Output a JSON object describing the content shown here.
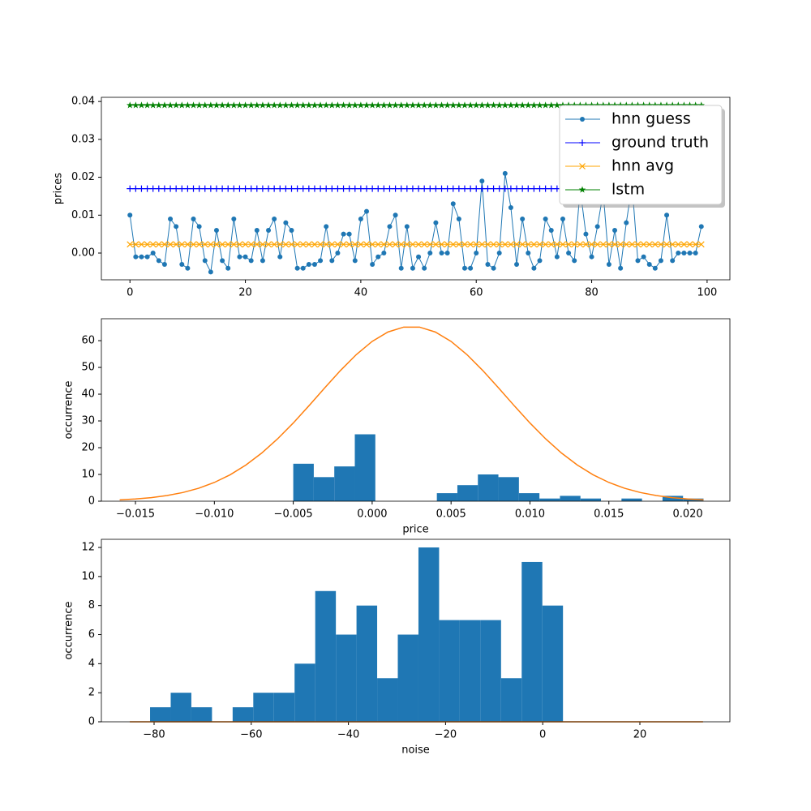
{
  "chart_data": [
    {
      "type": "line",
      "ylabel": "prices",
      "x": [
        0,
        1,
        2,
        3,
        4,
        5,
        6,
        7,
        8,
        9,
        10,
        11,
        12,
        13,
        14,
        15,
        16,
        17,
        18,
        19,
        20,
        21,
        22,
        23,
        24,
        25,
        26,
        27,
        28,
        29,
        30,
        31,
        32,
        33,
        34,
        35,
        36,
        37,
        38,
        39,
        40,
        41,
        42,
        43,
        44,
        45,
        46,
        47,
        48,
        49,
        50,
        51,
        52,
        53,
        54,
        55,
        56,
        57,
        58,
        59,
        60,
        61,
        62,
        63,
        64,
        65,
        66,
        67,
        68,
        69,
        70,
        71,
        72,
        73,
        74,
        75,
        76,
        77,
        78,
        79,
        80,
        81,
        82,
        83,
        84,
        85,
        86,
        87,
        88,
        89,
        90,
        91,
        92,
        93,
        94,
        95,
        96,
        97,
        98,
        99
      ],
      "series": [
        {
          "name": "hnn guess",
          "color": "#1f77b4",
          "marker": "dot",
          "values": [
            0.01,
            -0.001,
            -0.001,
            -0.001,
            0.0,
            -0.002,
            -0.003,
            0.009,
            0.007,
            -0.003,
            -0.004,
            0.009,
            0.007,
            -0.002,
            -0.005,
            0.006,
            -0.002,
            -0.004,
            0.009,
            -0.001,
            -0.001,
            -0.002,
            0.006,
            -0.002,
            0.006,
            0.009,
            -0.001,
            0.008,
            0.006,
            -0.004,
            -0.004,
            -0.003,
            -0.003,
            -0.002,
            0.007,
            -0.002,
            0.0,
            0.005,
            0.005,
            -0.002,
            0.009,
            0.011,
            -0.003,
            -0.001,
            0.0,
            0.007,
            0.01,
            -0.004,
            0.007,
            -0.004,
            -0.001,
            -0.004,
            0.0,
            0.008,
            0.0,
            0.0,
            0.013,
            0.009,
            -0.004,
            -0.004,
            0.0,
            0.019,
            -0.003,
            -0.004,
            0.0,
            0.021,
            0.012,
            -0.003,
            0.009,
            0.0,
            -0.004,
            -0.002,
            0.009,
            0.006,
            -0.001,
            0.009,
            0.0,
            -0.002,
            0.017,
            0.005,
            -0.001,
            0.007,
            0.016,
            -0.003,
            0.006,
            -0.004,
            0.008,
            0.018,
            -0.002,
            -0.001,
            -0.003,
            -0.004,
            -0.002,
            0.01,
            -0.002,
            0.0,
            0.0,
            0.0,
            0.0,
            0.007
          ]
        },
        {
          "name": "ground truth",
          "color": "#0000ff",
          "marker": "plus",
          "values": [
            0.017,
            0.017,
            0.017,
            0.017,
            0.017,
            0.017,
            0.017,
            0.017,
            0.017,
            0.017,
            0.017,
            0.017,
            0.017,
            0.017,
            0.017,
            0.017,
            0.017,
            0.017,
            0.017,
            0.017,
            0.017,
            0.017,
            0.017,
            0.017,
            0.017,
            0.017,
            0.017,
            0.017,
            0.017,
            0.017,
            0.017,
            0.017,
            0.017,
            0.017,
            0.017,
            0.017,
            0.017,
            0.017,
            0.017,
            0.017,
            0.017,
            0.017,
            0.017,
            0.017,
            0.017,
            0.017,
            0.017,
            0.017,
            0.017,
            0.017,
            0.017,
            0.017,
            0.017,
            0.017,
            0.017,
            0.017,
            0.017,
            0.017,
            0.017,
            0.017,
            0.017,
            0.017,
            0.017,
            0.017,
            0.017,
            0.017,
            0.017,
            0.017,
            0.017,
            0.017,
            0.017,
            0.017,
            0.017,
            0.017,
            0.017,
            0.017,
            0.017,
            0.017,
            0.017,
            0.017,
            0.017,
            0.017,
            0.017,
            0.017,
            0.017,
            0.017,
            0.017,
            0.017,
            0.017,
            0.017,
            0.017,
            0.017,
            0.017,
            0.017,
            0.017,
            0.017,
            0.017,
            0.017,
            0.017,
            0.017
          ]
        },
        {
          "name": "hnn avg",
          "color": "#ffa500",
          "marker": "x",
          "values": [
            0.0023,
            0.0023,
            0.0023,
            0.0023,
            0.0023,
            0.0023,
            0.0023,
            0.0023,
            0.0023,
            0.0023,
            0.0023,
            0.0023,
            0.0023,
            0.0023,
            0.0023,
            0.0023,
            0.0023,
            0.0023,
            0.0023,
            0.0023,
            0.0023,
            0.0023,
            0.0023,
            0.0023,
            0.0023,
            0.0023,
            0.0023,
            0.0023,
            0.0023,
            0.0023,
            0.0023,
            0.0023,
            0.0023,
            0.0023,
            0.0023,
            0.0023,
            0.0023,
            0.0023,
            0.0023,
            0.0023,
            0.0023,
            0.0023,
            0.0023,
            0.0023,
            0.0023,
            0.0023,
            0.0023,
            0.0023,
            0.0023,
            0.0023,
            0.0023,
            0.0023,
            0.0023,
            0.0023,
            0.0023,
            0.0023,
            0.0023,
            0.0023,
            0.0023,
            0.0023,
            0.0023,
            0.0023,
            0.0023,
            0.0023,
            0.0023,
            0.0023,
            0.0023,
            0.0023,
            0.0023,
            0.0023,
            0.0023,
            0.0023,
            0.0023,
            0.0023,
            0.0023,
            0.0023,
            0.0023,
            0.0023,
            0.0023,
            0.0023,
            0.0023,
            0.0023,
            0.0023,
            0.0023,
            0.0023,
            0.0023,
            0.0023,
            0.0023,
            0.0023,
            0.0023,
            0.0023,
            0.0023,
            0.0023,
            0.0023,
            0.0023,
            0.0023,
            0.0023,
            0.0023,
            0.0023,
            0.0023
          ]
        },
        {
          "name": "lstm",
          "color": "#008000",
          "marker": "star",
          "values": [
            0.039,
            0.039,
            0.039,
            0.039,
            0.039,
            0.039,
            0.039,
            0.039,
            0.039,
            0.039,
            0.039,
            0.039,
            0.039,
            0.039,
            0.039,
            0.039,
            0.039,
            0.039,
            0.039,
            0.039,
            0.039,
            0.039,
            0.039,
            0.039,
            0.039,
            0.039,
            0.039,
            0.039,
            0.039,
            0.039,
            0.039,
            0.039,
            0.039,
            0.039,
            0.039,
            0.039,
            0.039,
            0.039,
            0.039,
            0.039,
            0.039,
            0.039,
            0.039,
            0.039,
            0.039,
            0.039,
            0.039,
            0.039,
            0.039,
            0.039,
            0.039,
            0.039,
            0.039,
            0.039,
            0.039,
            0.039,
            0.039,
            0.039,
            0.039,
            0.039,
            0.039,
            0.039,
            0.039,
            0.039,
            0.039,
            0.039,
            0.039,
            0.039,
            0.039,
            0.039,
            0.039,
            0.039,
            0.039,
            0.039,
            0.039,
            0.039,
            0.039,
            0.039,
            0.039,
            0.039,
            0.039,
            0.039,
            0.039,
            0.039,
            0.039,
            0.039,
            0.039,
            0.039,
            0.039,
            0.039,
            0.039,
            0.039,
            0.039,
            0.039,
            0.039,
            0.039,
            0.039,
            0.039,
            0.039,
            0.039
          ]
        }
      ],
      "xlim": [
        -4.95,
        103.95
      ],
      "xticks": [
        0,
        20,
        40,
        60,
        80,
        100
      ],
      "ylim": [
        -0.00706,
        0.0411
      ],
      "yticks": [
        {
          "value": 0,
          "label": "0.00"
        },
        {
          "value": 0.01,
          "label": "0.01"
        },
        {
          "value": 0.02,
          "label": "0.02"
        },
        {
          "value": 0.03,
          "label": "0.03"
        },
        {
          "value": 0.04,
          "label": "0.04"
        }
      ],
      "legend": "upper right"
    },
    {
      "type": "histogram",
      "xlabel": "price",
      "ylabel": "occurrence",
      "color": "#1f77b4",
      "bins": [
        -0.005,
        -0.0037,
        -0.0024,
        -0.0011,
        0.0002,
        0.0015,
        0.0028,
        0.0041,
        0.0054,
        0.0067,
        0.008,
        0.0093,
        0.0106,
        0.0119,
        0.0132,
        0.0145,
        0.0158,
        0.0171,
        0.0184,
        0.0197,
        0.021
      ],
      "values": [
        14,
        9,
        13,
        25,
        0,
        0,
        0,
        3,
        6,
        10,
        9,
        3,
        1,
        2,
        1,
        0,
        1,
        0,
        2,
        1
      ],
      "curve": {
        "color": "#ff7f0e",
        "x": [
          -0.016,
          -0.015,
          -0.014,
          -0.013,
          -0.012,
          -0.011,
          -0.01,
          -0.009,
          -0.008,
          -0.007,
          -0.006,
          -0.005,
          -0.004,
          -0.003,
          -0.002,
          -0.001,
          0.0,
          0.001,
          0.002,
          0.003,
          0.004,
          0.005,
          0.006,
          0.007,
          0.008,
          0.009,
          0.01,
          0.011,
          0.012,
          0.013,
          0.014,
          0.015,
          0.016,
          0.017,
          0.018,
          0.019,
          0.02,
          0.021
        ],
        "values": [
          0.49,
          0.82,
          1.34,
          2.11,
          3.24,
          4.83,
          7.01,
          9.87,
          13.52,
          17.99,
          23.27,
          29.23,
          35.71,
          42.39,
          48.9,
          54.82,
          59.72,
          63.24,
          65.07,
          65.07,
          63.24,
          59.72,
          54.82,
          48.9,
          42.39,
          35.71,
          29.23,
          23.27,
          17.99,
          13.52,
          9.87,
          7.01,
          4.83,
          3.24,
          2.11,
          1.34,
          0.82,
          0.49
        ]
      },
      "xlim": [
        -0.01716,
        0.02267
      ],
      "xticks": [
        {
          "value": -0.015,
          "label": "−0.015"
        },
        {
          "value": -0.01,
          "label": "−0.010"
        },
        {
          "value": -0.005,
          "label": "−0.005"
        },
        {
          "value": 0,
          "label": "0.000"
        },
        {
          "value": 0.005,
          "label": "0.005"
        },
        {
          "value": 0.01,
          "label": "0.010"
        },
        {
          "value": 0.015,
          "label": "0.015"
        },
        {
          "value": 0.02,
          "label": "0.020"
        }
      ],
      "ylim": [
        0,
        68.2
      ],
      "yticks": [
        0,
        10,
        20,
        30,
        40,
        50,
        60
      ]
    },
    {
      "type": "histogram",
      "xlabel": "noise",
      "ylabel": "occurrence",
      "color": "#1f77b4",
      "bins": [
        -80.83,
        -76.58,
        -72.33,
        -68.08,
        -63.83,
        -59.58,
        -55.33,
        -51.08,
        -46.83,
        -42.58,
        -38.33,
        -34.08,
        -29.83,
        -25.58,
        -21.33,
        -17.08,
        -12.83,
        -8.58,
        -4.33,
        -0.08,
        4.17
      ],
      "values": [
        1,
        2,
        1,
        0,
        1,
        2,
        2,
        4,
        9,
        6,
        8,
        3,
        6,
        12,
        7,
        7,
        7,
        3,
        11,
        8
      ],
      "curve": {
        "color": "#ff7f0e",
        "x": [
          -85,
          33
        ],
        "values": [
          0,
          0
        ]
      },
      "xlim": [
        -90.85,
        38.53
      ],
      "xticks": [
        {
          "value": -80,
          "label": "−80"
        },
        {
          "value": -60,
          "label": "−60"
        },
        {
          "value": -40,
          "label": "−40"
        },
        {
          "value": -20,
          "label": "−20"
        },
        0,
        20
      ],
      "ylim": [
        0,
        12.56
      ],
      "yticks": [
        0,
        2,
        4,
        6,
        8,
        10,
        12
      ]
    }
  ]
}
